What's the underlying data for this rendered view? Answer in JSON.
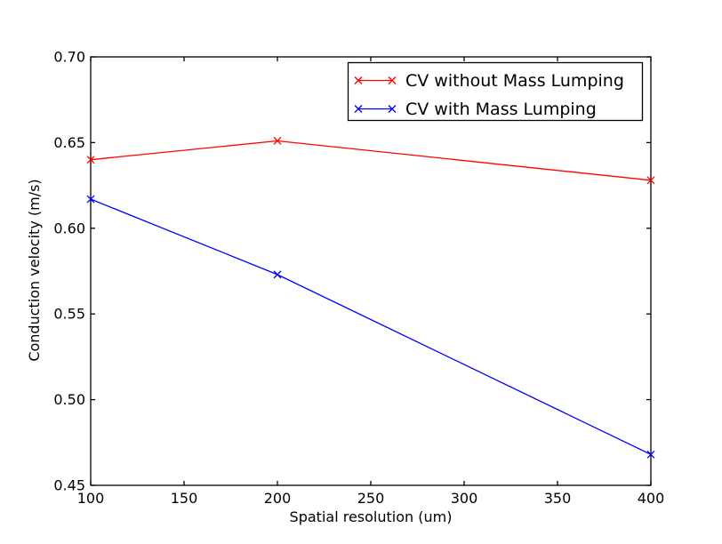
{
  "chart_data": {
    "type": "line",
    "title": "",
    "xlabel": "Spatial resolution (um)",
    "ylabel": "Conduction velocity (m/s)",
    "xlim": [
      100,
      400
    ],
    "ylim": [
      0.45,
      0.7
    ],
    "grid": false,
    "tick_direction": "in",
    "ticks_all_sides": true,
    "background": "#ffffff",
    "xticks": {
      "values": [
        100,
        150,
        200,
        250,
        300,
        350,
        400
      ],
      "labels": [
        "100",
        "150",
        "200",
        "250",
        "300",
        "350",
        "400"
      ]
    },
    "yticks": {
      "values": [
        0.45,
        0.5,
        0.55,
        0.6,
        0.65,
        0.7
      ],
      "labels": [
        "0.45",
        "0.50",
        "0.55",
        "0.60",
        "0.65",
        "0.70"
      ]
    },
    "x": [
      100,
      200,
      400
    ],
    "series": [
      {
        "name": "CV without Mass Lumping",
        "color": "#ff0000",
        "marker": "x",
        "values": [
          0.64,
          0.651,
          0.628
        ]
      },
      {
        "name": "CV with Mass Lumping",
        "color": "#0000ff",
        "marker": "x",
        "values": [
          0.617,
          0.573,
          0.468
        ]
      }
    ],
    "legend": {
      "position": "upper right",
      "border_color": "#000000",
      "background": "#ffffff"
    },
    "axis_color": "#000000"
  }
}
